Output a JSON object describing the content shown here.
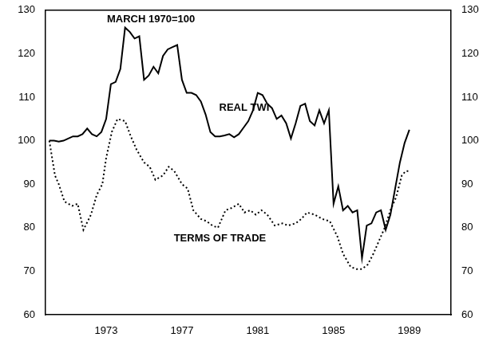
{
  "chart_data": {
    "type": "line",
    "title": "MARCH 1970=100",
    "xlim": [
      1969.8,
      1991.2
    ],
    "xticks": [
      1973,
      1977,
      1981,
      1985,
      1989
    ],
    "ylim": [
      60,
      130
    ],
    "yticks": [
      60,
      70,
      80,
      90,
      100,
      110,
      120,
      130
    ],
    "y2lim": [
      60,
      130
    ],
    "y2ticks": [
      60,
      70,
      80,
      90,
      100,
      110,
      120,
      130
    ],
    "grid": false,
    "series": [
      {
        "name": "REAL TWI",
        "color": "#000000",
        "line_style": "solid",
        "x": [
          1970.0,
          1970.25,
          1970.5,
          1970.75,
          1971.0,
          1971.25,
          1971.5,
          1971.75,
          1972.0,
          1972.25,
          1972.5,
          1972.75,
          1973.0,
          1973.25,
          1973.5,
          1973.75,
          1974.0,
          1974.25,
          1974.5,
          1974.75,
          1975.0,
          1975.25,
          1975.5,
          1975.75,
          1976.0,
          1976.25,
          1976.5,
          1976.75,
          1977.0,
          1977.25,
          1977.5,
          1977.75,
          1978.0,
          1978.25,
          1978.5,
          1978.75,
          1979.0,
          1979.25,
          1979.5,
          1979.75,
          1980.0,
          1980.25,
          1980.5,
          1980.75,
          1981.0,
          1981.25,
          1981.5,
          1981.75,
          1982.0,
          1982.25,
          1982.5,
          1982.75,
          1983.0,
          1983.25,
          1983.5,
          1983.75,
          1984.0,
          1984.25,
          1984.5,
          1984.75,
          1985.0,
          1985.25,
          1985.5,
          1985.75,
          1986.0,
          1986.25,
          1986.5,
          1986.75,
          1987.0,
          1987.25,
          1987.5,
          1987.75,
          1988.0,
          1988.25,
          1988.5,
          1988.75,
          1989.0
        ],
        "values": [
          100,
          100,
          99.8,
          100,
          100.5,
          101,
          101,
          101.5,
          102.8,
          101.5,
          101,
          102,
          105,
          113,
          113.5,
          116.5,
          126,
          125,
          123.5,
          124,
          114,
          115,
          117,
          115.5,
          119.5,
          121,
          121.5,
          122,
          114,
          111,
          111,
          110.5,
          109,
          106,
          102,
          101,
          101,
          101.2,
          101.5,
          100.8,
          101.5,
          103,
          104.5,
          107,
          111,
          110.5,
          108.5,
          107.5,
          105,
          105.8,
          104,
          100.5,
          104,
          108,
          108.5,
          104.5,
          103.5,
          107,
          104,
          107,
          85.5,
          89.5,
          84,
          85,
          83.5,
          84,
          73,
          80.5,
          81,
          83.5,
          84,
          79.5,
          83,
          89,
          95,
          99.5,
          102.5
        ]
      },
      {
        "name": "TERMS OF TRADE",
        "color": "#000000",
        "line_style": "dotted",
        "x": [
          1970.0,
          1970.3,
          1970.5,
          1970.8,
          1971.2,
          1971.5,
          1971.8,
          1972.2,
          1972.5,
          1972.8,
          1973.0,
          1973.3,
          1973.6,
          1974.0,
          1974.3,
          1974.6,
          1975.0,
          1975.3,
          1975.6,
          1976.0,
          1976.3,
          1976.6,
          1977.0,
          1977.3,
          1977.6,
          1978.0,
          1978.3,
          1978.6,
          1978.9,
          1979.3,
          1979.6,
          1980.0,
          1980.3,
          1980.6,
          1980.9,
          1981.2,
          1981.5,
          1981.9,
          1982.3,
          1982.6,
          1983.0,
          1983.3,
          1983.6,
          1984.0,
          1984.4,
          1984.8,
          1985.2,
          1985.5,
          1985.9,
          1986.2,
          1986.5,
          1986.8,
          1987.1,
          1987.4,
          1987.7,
          1988.0,
          1988.3,
          1988.6,
          1988.8,
          1989.0
        ],
        "values": [
          100,
          92,
          90,
          86,
          85,
          85.5,
          79.5,
          83,
          87.5,
          90,
          96,
          102,
          105,
          104.5,
          101,
          98,
          95,
          94,
          91,
          92,
          94,
          93,
          90,
          89,
          84,
          82,
          81.5,
          80.5,
          80,
          84,
          84.5,
          85.5,
          83.5,
          84,
          83,
          84,
          83,
          80.5,
          81,
          80.5,
          81,
          82,
          83.5,
          83,
          82,
          81.5,
          78,
          74,
          71,
          70.5,
          70.5,
          71.5,
          74,
          77,
          80,
          84,
          87,
          92,
          93,
          93
        ]
      }
    ]
  }
}
